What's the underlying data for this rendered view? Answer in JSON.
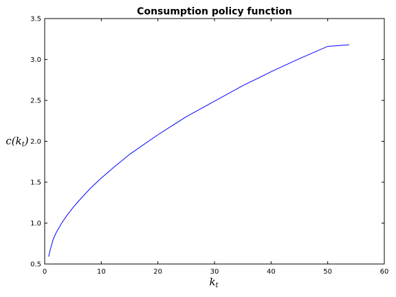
{
  "chart_data": {
    "type": "line",
    "title": "Consumption policy function",
    "xlabel": {
      "base": "k",
      "sub": "t"
    },
    "ylabel": {
      "base": "c(k",
      "sub": "t",
      "close": ")"
    },
    "xlim": [
      0,
      60
    ],
    "ylim": [
      0.5,
      3.5
    ],
    "xticks": [
      0,
      10,
      20,
      30,
      40,
      50,
      60
    ],
    "yticks": [
      0.5,
      1.0,
      1.5,
      2.0,
      2.5,
      3.0,
      3.5
    ],
    "xtick_labels": [
      "0",
      "10",
      "20",
      "30",
      "40",
      "50",
      "60"
    ],
    "ytick_labels": [
      "0.5",
      "1.0",
      "1.5",
      "2.0",
      "2.5",
      "3.0",
      "3.5"
    ],
    "grid": false,
    "series": [
      {
        "color": "#0000ff",
        "x": [
          0.7,
          1.0,
          1.5,
          2.0,
          3.0,
          4.0,
          5.0,
          6.0,
          8.0,
          10.0,
          12.0,
          15.0,
          20.0,
          25.0,
          30.0,
          35.0,
          40.0,
          45.0,
          50.0,
          53.8
        ],
        "y": [
          0.59,
          0.68,
          0.8,
          0.88,
          1.0,
          1.1,
          1.19,
          1.27,
          1.42,
          1.55,
          1.67,
          1.84,
          2.08,
          2.3,
          2.49,
          2.68,
          2.85,
          3.01,
          3.16,
          3.18
        ]
      }
    ]
  }
}
